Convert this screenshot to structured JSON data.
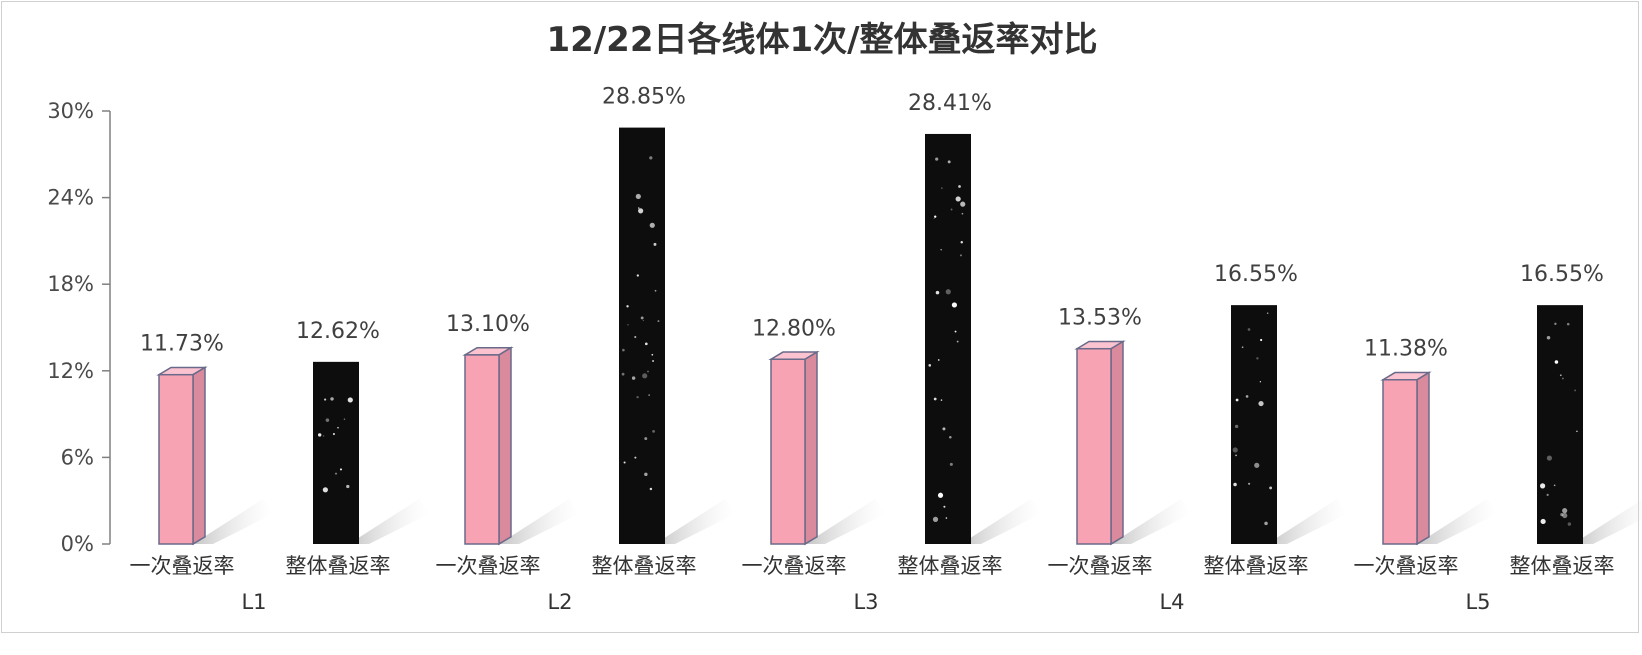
{
  "chart_data": {
    "type": "bar",
    "title": "12/22日各线体1次/整体叠返率对比",
    "categories": [
      "L1",
      "L2",
      "L3",
      "L4",
      "L5"
    ],
    "series": [
      {
        "name": "一次叠返率",
        "values": [
          11.73,
          13.1,
          12.8,
          13.53,
          11.38
        ],
        "labels": [
          "11.73%",
          "13.10%",
          "12.80%",
          "13.53%",
          "11.38%"
        ]
      },
      {
        "name": "整体叠返率",
        "values": [
          12.62,
          28.85,
          28.41,
          16.55,
          16.55
        ],
        "labels": [
          "12.62%",
          "28.85%",
          "28.41%",
          "16.55%",
          "16.55%"
        ]
      }
    ],
    "yticks": [
      "0%",
      "6%",
      "12%",
      "18%",
      "24%",
      "30%"
    ],
    "ylim": [
      0,
      30
    ],
    "colors": {
      "series1": "#f7a3b4",
      "series1_side": "#d98a9c",
      "series2": "#0d0d0d",
      "bar_edge": "#6a6a8a",
      "axis": "#808080"
    }
  }
}
